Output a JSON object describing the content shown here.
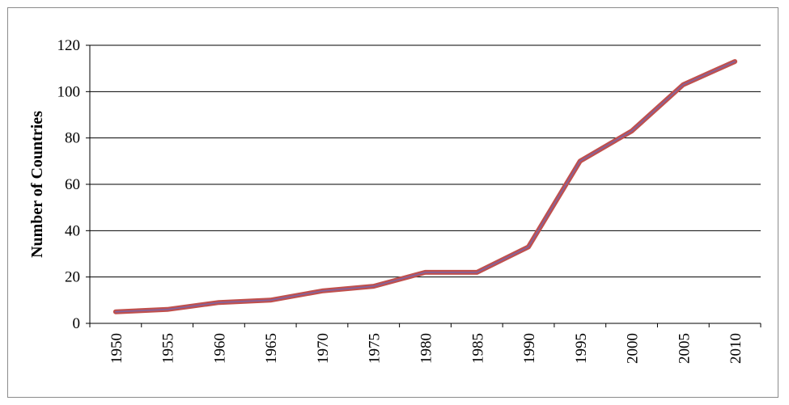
{
  "chart_data": {
    "type": "line",
    "title": "",
    "xlabel": "",
    "ylabel": "Number of Countries",
    "categories": [
      "1950",
      "1955",
      "1960",
      "1965",
      "1970",
      "1975",
      "1980",
      "1985",
      "1990",
      "1995",
      "2000",
      "2005",
      "2010"
    ],
    "series": [
      {
        "values": [
          5,
          6,
          9,
          10,
          14,
          16,
          22,
          22,
          33,
          70,
          83,
          103,
          113
        ]
      }
    ],
    "ylim": [
      0,
      120
    ],
    "yticks": [
      "0",
      "20",
      "40",
      "60",
      "80",
      "100",
      "120"
    ],
    "grid": true,
    "legend": "none",
    "colors": {
      "line_outer": "#c0504d",
      "line_inner": "#8064a2",
      "grid": "#000000"
    }
  }
}
